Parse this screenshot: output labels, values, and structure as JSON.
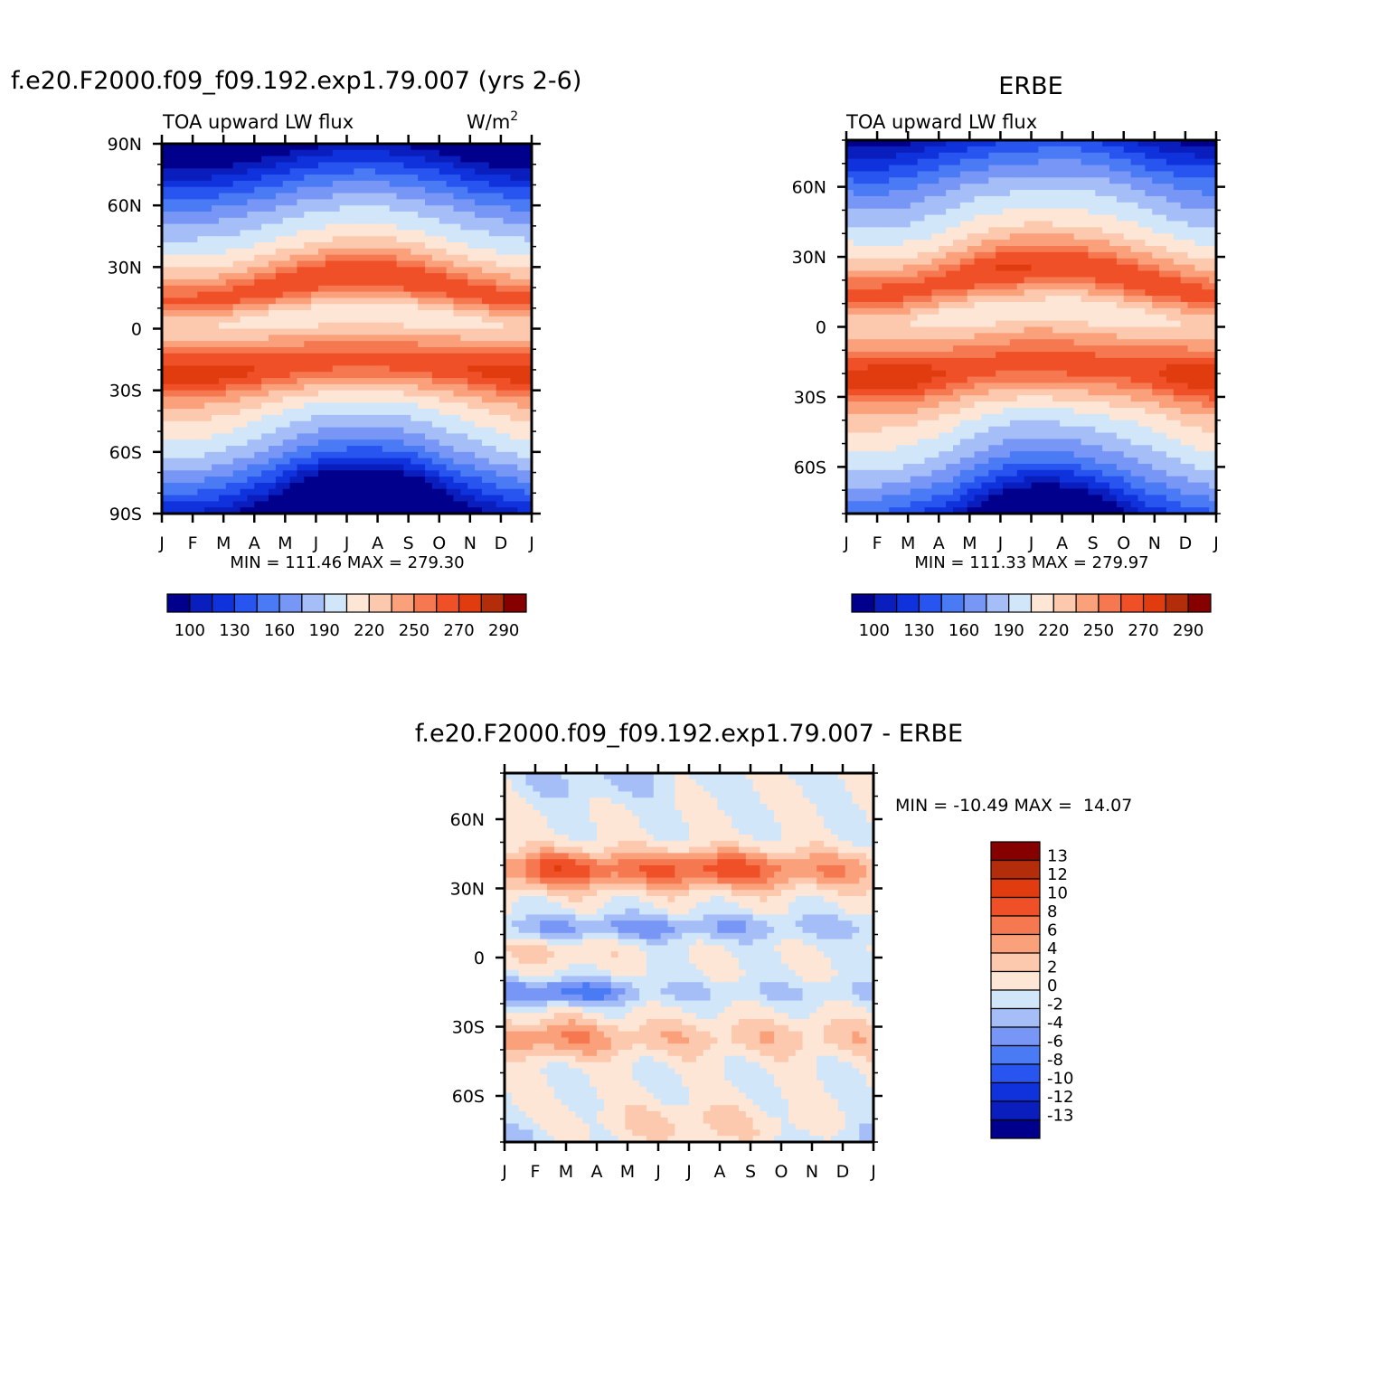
{
  "chart_data": [
    {
      "type": "heatmap",
      "id": "model",
      "main_title": "f.e20.F2000.f09_f09.192.exp1.79.007 (yrs 2-6)",
      "left_title": "TOA upward LW flux",
      "right_title": "W/m",
      "units_sup": "2",
      "x_tick_labels": [
        "J",
        "F",
        "M",
        "A",
        "M",
        "J",
        "J",
        "A",
        "S",
        "O",
        "N",
        "D",
        "J"
      ],
      "y_tick_labels": [
        "90N",
        "60N",
        "30N",
        "0",
        "30S",
        "60S",
        "90S"
      ],
      "ylim": [
        -90,
        90
      ],
      "stats": "MIN = 111.46 MAX = 279.30",
      "levels": [
        100,
        115,
        130,
        145,
        160,
        175,
        190,
        205,
        220,
        235,
        250,
        260,
        270,
        280,
        290
      ],
      "colorbar_labels": [
        "100",
        "130",
        "160",
        "190",
        "220",
        "250",
        "270",
        "290"
      ]
    },
    {
      "type": "heatmap",
      "id": "obs",
      "main_title": "ERBE",
      "left_title": "TOA upward LW flux",
      "x_tick_labels": [
        "J",
        "F",
        "M",
        "A",
        "M",
        "J",
        "J",
        "A",
        "S",
        "O",
        "N",
        "D",
        "J"
      ],
      "y_tick_labels": [
        "60N",
        "30N",
        "0",
        "30S",
        "60S"
      ],
      "ylim": [
        -80,
        80
      ],
      "stats": "MIN = 111.33 MAX = 279.97",
      "levels": [
        100,
        115,
        130,
        145,
        160,
        175,
        190,
        205,
        220,
        235,
        250,
        260,
        270,
        280,
        290
      ],
      "colorbar_labels": [
        "100",
        "130",
        "160",
        "190",
        "220",
        "250",
        "270",
        "290"
      ]
    },
    {
      "type": "heatmap",
      "id": "diff",
      "main_title": "f.e20.F2000.f09_f09.192.exp1.79.007 - ERBE",
      "x_tick_labels": [
        "J",
        "F",
        "M",
        "A",
        "M",
        "J",
        "J",
        "A",
        "S",
        "O",
        "N",
        "D",
        "J"
      ],
      "y_tick_labels": [
        "60N",
        "30N",
        "0",
        "30S",
        "60S"
      ],
      "ylim": [
        -80,
        80
      ],
      "stats": "MIN = -10.49 MAX =  14.07",
      "levels": [
        -13,
        -12,
        -10,
        -8,
        -6,
        -4,
        -2,
        0,
        2,
        4,
        6,
        8,
        10,
        12,
        13
      ],
      "colorbar_labels": [
        "13",
        "12",
        "10",
        "8",
        "6",
        "4",
        "2",
        "0",
        "-2",
        "-4",
        "-6",
        "-8",
        "-10",
        "-12",
        "-13"
      ]
    }
  ],
  "palette": [
    "#00008c",
    "#0a1ebe",
    "#0f32dc",
    "#2855f0",
    "#4b7af5",
    "#7896f5",
    "#a5bef8",
    "#d2e6fa",
    "#fde6d6",
    "#fcc8ae",
    "#faa07a",
    "#f57850",
    "#f05028",
    "#e13c0f",
    "#b42d0a",
    "#870000"
  ]
}
